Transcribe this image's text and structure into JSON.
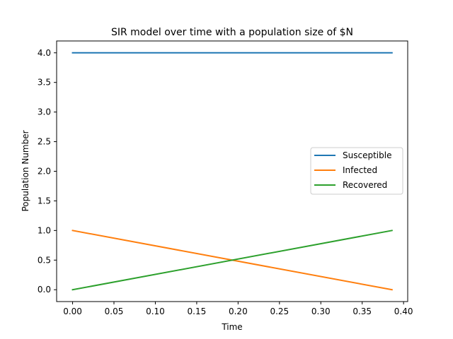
{
  "chart_data": {
    "type": "line",
    "title": "SIR model over time with a population size of $N",
    "xlabel": "Time",
    "ylabel": "Population Number",
    "xlim": [
      -0.0193,
      0.405
    ],
    "ylim": [
      -0.2,
      4.2
    ],
    "xticks": [
      0.0,
      0.05,
      0.1,
      0.15,
      0.2,
      0.25,
      0.3,
      0.35,
      0.4
    ],
    "xtick_labels": [
      "0.00",
      "0.05",
      "0.10",
      "0.15",
      "0.20",
      "0.25",
      "0.30",
      "0.35",
      "0.40"
    ],
    "yticks": [
      0.0,
      0.5,
      1.0,
      1.5,
      2.0,
      2.5,
      3.0,
      3.5,
      4.0
    ],
    "ytick_labels": [
      "0.0",
      "0.5",
      "1.0",
      "1.5",
      "2.0",
      "2.5",
      "3.0",
      "3.5",
      "4.0"
    ],
    "grid": false,
    "legend_position": "center-right",
    "series": [
      {
        "name": "Susceptible",
        "color": "#1f77b4",
        "x": [
          0.0,
          0.386
        ],
        "y": [
          4.0,
          4.0
        ]
      },
      {
        "name": "Infected",
        "color": "#ff7f0e",
        "x": [
          0.0,
          0.386
        ],
        "y": [
          1.0,
          0.0
        ]
      },
      {
        "name": "Recovered",
        "color": "#2ca02c",
        "x": [
          0.0,
          0.386
        ],
        "y": [
          0.0,
          1.0
        ]
      }
    ]
  }
}
